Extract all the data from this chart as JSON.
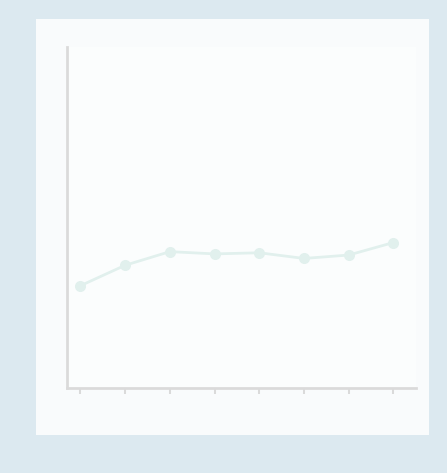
{
  "x": [
    0,
    1,
    2,
    3,
    4,
    5,
    6,
    7
  ],
  "y": [
    0.9,
    1.08,
    1.2,
    1.18,
    1.19,
    1.14,
    1.17,
    1.28
  ],
  "line_color": "#3d9e8a",
  "marker_color": "#3d9e8a",
  "marker_size": 8,
  "line_width": 2.0,
  "axes_bg_color": "#e8f4f7",
  "ylim": [
    0,
    3.0
  ],
  "xlim": [
    -0.3,
    7.5
  ],
  "fig_bg_color": "#dce9f0",
  "plot_bg_color": "#eaf4f8",
  "spine_color": "#111111",
  "tick_color": "#111111",
  "box_bg": "#f0f8fa"
}
